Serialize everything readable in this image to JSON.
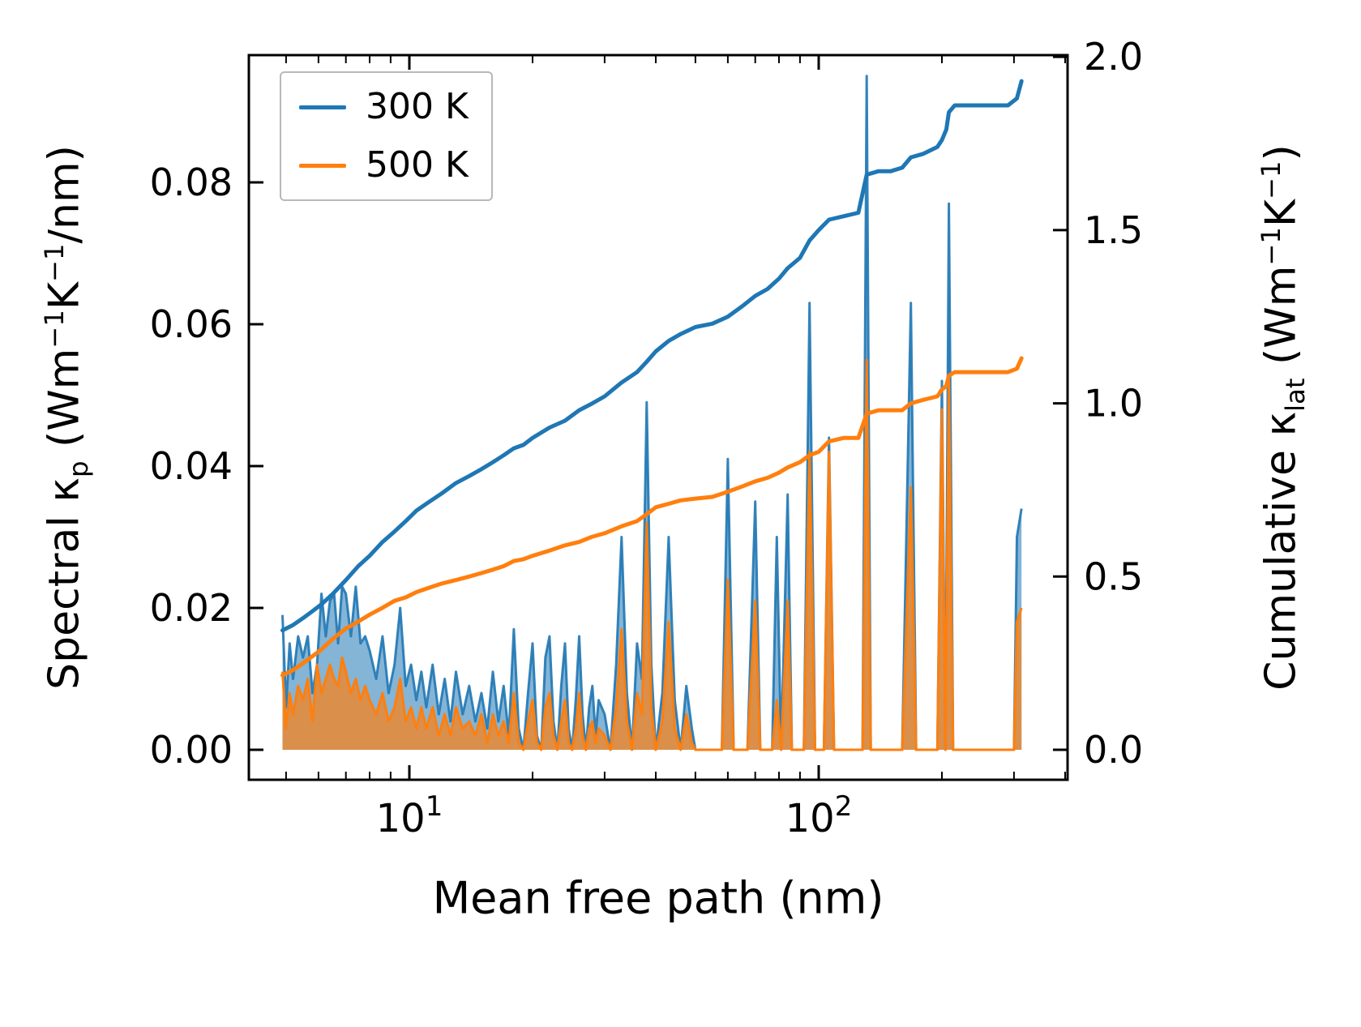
{
  "chart_data": {
    "type": "line",
    "title": "",
    "xlabel": "Mean free path (nm)",
    "xscale": "log",
    "xlim": [
      4.055,
      405.5
    ],
    "grid": false,
    "axes": {
      "x": {
        "label": "Mean free path (nm)",
        "ticks": [
          {
            "value": 10,
            "base": "10",
            "exp": "1",
            "label": "10¹"
          },
          {
            "value": 100,
            "base": "10",
            "exp": "2",
            "label": "10²"
          }
        ],
        "minor": [
          5,
          6,
          7,
          8,
          9,
          20,
          30,
          40,
          50,
          60,
          70,
          80,
          90,
          200,
          300,
          400
        ]
      },
      "left": {
        "label": "Spectral κp (Wm⁻¹K⁻¹/nm)",
        "label_parts": {
          "t1": "Spectral κ",
          "sub1": "p",
          "t2": " (Wm",
          "sup1": "−1",
          "t3": "K",
          "sup2": "−1",
          "t4": "/nm)"
        },
        "lim": [
          -0.00423,
          0.09794
        ],
        "ticks": [
          {
            "value": 0.0,
            "label": "0.00"
          },
          {
            "value": 0.02,
            "label": "0.02"
          },
          {
            "value": 0.04,
            "label": "0.04"
          },
          {
            "value": 0.06,
            "label": "0.06"
          },
          {
            "value": 0.08,
            "label": "0.08"
          }
        ]
      },
      "right": {
        "label": "Cumulative κlat (Wm⁻¹K⁻¹)",
        "label_parts": {
          "t1": "Cumulative κ",
          "sub1": "lat",
          "t2": " (Wm",
          "sup1": "−1",
          "t3": "K",
          "sup2": "−1",
          "t4": ")"
        },
        "lim": [
          -0.0865,
          2.005
        ],
        "ticks": [
          {
            "value": 0.0,
            "label": "0.0"
          },
          {
            "value": 0.5,
            "label": "0.5"
          },
          {
            "value": 1.0,
            "label": "1.0"
          },
          {
            "value": 1.5,
            "label": "1.5"
          },
          {
            "value": 2.0,
            "label": "2.0"
          }
        ]
      }
    },
    "legend": {
      "position": "upper left",
      "items": [
        {
          "label": "300 K",
          "color": "#1f77b4"
        },
        {
          "label": "500 K",
          "color": "#ff7f0e"
        }
      ]
    },
    "spectral": {
      "x": [
        4.9,
        5.0,
        5.1,
        5.2,
        5.35,
        5.5,
        5.65,
        5.8,
        5.95,
        6.1,
        6.25,
        6.4,
        6.55,
        6.7,
        6.85,
        7.0,
        7.2,
        7.4,
        7.6,
        7.8,
        8.0,
        8.3,
        8.6,
        8.9,
        9.2,
        9.5,
        9.8,
        10.1,
        10.4,
        10.7,
        11.0,
        11.4,
        11.8,
        12.2,
        12.6,
        13.0,
        13.5,
        14.0,
        14.5,
        15.0,
        15.5,
        16.0,
        16.5,
        17.0,
        17.5,
        18.0,
        18.5,
        19.0,
        19.5,
        20.0,
        20.5,
        21.0,
        21.5,
        22.0,
        22.5,
        23.0,
        23.5,
        24.0,
        24.5,
        25.0,
        25.5,
        26.0,
        26.5,
        27.0,
        27.5,
        28.0,
        28.5,
        29.0,
        30.0,
        31.0,
        32.0,
        33.0,
        34.0,
        35.0,
        36.0,
        37.0,
        38.0,
        39.0,
        40.0,
        41.5,
        43.0,
        44.5,
        46.0,
        47.5,
        49.0,
        50.0,
        52.0,
        55.0,
        58.0,
        60.0,
        62.0,
        65.0,
        67.0,
        70.0,
        72.0,
        75.0,
        77.0,
        79.0,
        81.0,
        84.0,
        86.0,
        90.0,
        92.0,
        95.0,
        98.0,
        101.0,
        103.0,
        106.0,
        109.0,
        115.0,
        120.0,
        128.0,
        131.0,
        134.0,
        145.0,
        160.0,
        168.0,
        173.0,
        185.0,
        195.0,
        200.0,
        204.0,
        208.0,
        213.0,
        230.0,
        260.0,
        290.0,
        300.0,
        305.0,
        313.0
      ],
      "series": [
        {
          "name": "300 K",
          "color": "#1f77b4",
          "axis": "left",
          "style": "area",
          "values": [
            0.019,
            0.006,
            0.015,
            0.01,
            0.016,
            0.013,
            0.016,
            0.008,
            0.012,
            0.022,
            0.016,
            0.021,
            0.022,
            0.015,
            0.023,
            0.022,
            0.016,
            0.023,
            0.015,
            0.016,
            0.014,
            0.01,
            0.016,
            0.008,
            0.012,
            0.02,
            0.009,
            0.012,
            0.007,
            0.011,
            0.006,
            0.012,
            0.005,
            0.01,
            0.004,
            0.011,
            0.005,
            0.009,
            0.004,
            0.008,
            0.003,
            0.011,
            0.004,
            0.009,
            0.002,
            0.017,
            0.003,
            0.0,
            0.008,
            0.015,
            0.002,
            0.0,
            0.013,
            0.016,
            0.004,
            0.0,
            0.009,
            0.015,
            0.003,
            0.0,
            0.007,
            0.016,
            0.005,
            0.0,
            0.006,
            0.009,
            0.002,
            0.007,
            0.005,
            0.0,
            0.012,
            0.03,
            0.008,
            0.0,
            0.015,
            0.01,
            0.049,
            0.012,
            0.0,
            0.008,
            0.03,
            0.007,
            0.0,
            0.009,
            0.003,
            0.0,
            0.0,
            0.0,
            0.0,
            0.041,
            0.0,
            0.0,
            0.0,
            0.035,
            0.0,
            0.0,
            0.0,
            0.03,
            0.0,
            0.036,
            0.0,
            0.0,
            0.0,
            0.063,
            0.0,
            0.0,
            0.0,
            0.044,
            0.0,
            0.0,
            0.0,
            0.0,
            0.095,
            0.0,
            0.0,
            0.0,
            0.063,
            0.0,
            0.0,
            0.0,
            0.052,
            0.0,
            0.077,
            0.0,
            0.0,
            0.0,
            0.0,
            0.0,
            0.03,
            0.034
          ]
        },
        {
          "name": "500 K",
          "color": "#ff7f0e",
          "axis": "left",
          "style": "area",
          "values": [
            0.011,
            0.003,
            0.008,
            0.005,
            0.009,
            0.007,
            0.01,
            0.004,
            0.012,
            0.008,
            0.01,
            0.012,
            0.01,
            0.009,
            0.013,
            0.011,
            0.008,
            0.01,
            0.007,
            0.009,
            0.007,
            0.005,
            0.008,
            0.004,
            0.006,
            0.01,
            0.004,
            0.006,
            0.003,
            0.006,
            0.003,
            0.006,
            0.002,
            0.005,
            0.002,
            0.006,
            0.003,
            0.004,
            0.002,
            0.005,
            0.001,
            0.005,
            0.002,
            0.004,
            0.001,
            0.008,
            0.001,
            0.0,
            0.004,
            0.007,
            0.001,
            0.0,
            0.006,
            0.008,
            0.002,
            0.0,
            0.004,
            0.007,
            0.001,
            0.0,
            0.003,
            0.008,
            0.002,
            0.0,
            0.003,
            0.004,
            0.001,
            0.003,
            0.002,
            0.0,
            0.006,
            0.017,
            0.004,
            0.0,
            0.008,
            0.005,
            0.032,
            0.006,
            0.0,
            0.004,
            0.018,
            0.003,
            0.0,
            0.005,
            0.001,
            0.0,
            0.0,
            0.0,
            0.0,
            0.024,
            0.0,
            0.0,
            0.0,
            0.021,
            0.0,
            0.0,
            0.0,
            0.007,
            0.0,
            0.021,
            0.0,
            0.0,
            0.0,
            0.042,
            0.0,
            0.0,
            0.0,
            0.042,
            0.0,
            0.0,
            0.0,
            0.0,
            0.055,
            0.0,
            0.0,
            0.0,
            0.037,
            0.0,
            0.0,
            0.0,
            0.048,
            0.0,
            0.052,
            0.0,
            0.0,
            0.0,
            0.0,
            0.0,
            0.018,
            0.02
          ]
        }
      ]
    },
    "cumulative": {
      "x": [
        4.9,
        5.2,
        5.5,
        5.8,
        6.1,
        6.5,
        7.0,
        7.5,
        8.0,
        8.6,
        9.2,
        9.8,
        10.4,
        11.0,
        12.0,
        13.0,
        14.0,
        15.0,
        16.0,
        17.0,
        18.0,
        19.0,
        20.0,
        22.0,
        24.0,
        26.0,
        28.0,
        30.0,
        33.0,
        36.0,
        38.0,
        40.0,
        43.0,
        46.0,
        50.0,
        55.0,
        60.0,
        65.0,
        70.0,
        75.0,
        80.0,
        84.0,
        90.0,
        95.0,
        100.0,
        106.0,
        115.0,
        125.0,
        131.0,
        140.0,
        150.0,
        160.0,
        168.0,
        180.0,
        195.0,
        200.0,
        205.0,
        208.0,
        215.0,
        230.0,
        260.0,
        290.0,
        305.0,
        313.0
      ],
      "series": [
        {
          "name": "300 K",
          "color": "#1f77b4",
          "axis": "right",
          "style": "line",
          "values": [
            0.345,
            0.36,
            0.38,
            0.4,
            0.42,
            0.45,
            0.49,
            0.53,
            0.56,
            0.6,
            0.63,
            0.66,
            0.69,
            0.71,
            0.74,
            0.77,
            0.79,
            0.81,
            0.83,
            0.85,
            0.87,
            0.88,
            0.9,
            0.93,
            0.95,
            0.98,
            1.0,
            1.02,
            1.06,
            1.09,
            1.12,
            1.15,
            1.18,
            1.2,
            1.22,
            1.23,
            1.25,
            1.28,
            1.31,
            1.33,
            1.36,
            1.39,
            1.42,
            1.47,
            1.5,
            1.53,
            1.54,
            1.55,
            1.66,
            1.67,
            1.67,
            1.68,
            1.71,
            1.72,
            1.74,
            1.76,
            1.79,
            1.84,
            1.86,
            1.86,
            1.86,
            1.86,
            1.88,
            1.93
          ]
        },
        {
          "name": "500 K",
          "color": "#ff7f0e",
          "axis": "right",
          "style": "line",
          "values": [
            0.215,
            0.23,
            0.25,
            0.27,
            0.29,
            0.32,
            0.35,
            0.37,
            0.39,
            0.41,
            0.43,
            0.44,
            0.455,
            0.465,
            0.48,
            0.49,
            0.5,
            0.51,
            0.52,
            0.53,
            0.545,
            0.55,
            0.56,
            0.575,
            0.59,
            0.6,
            0.615,
            0.625,
            0.645,
            0.66,
            0.68,
            0.7,
            0.71,
            0.72,
            0.725,
            0.73,
            0.745,
            0.76,
            0.775,
            0.785,
            0.8,
            0.815,
            0.83,
            0.85,
            0.86,
            0.89,
            0.9,
            0.9,
            0.97,
            0.98,
            0.98,
            0.98,
            1.0,
            1.01,
            1.02,
            1.04,
            1.05,
            1.08,
            1.09,
            1.09,
            1.09,
            1.09,
            1.1,
            1.13
          ]
        }
      ]
    }
  }
}
